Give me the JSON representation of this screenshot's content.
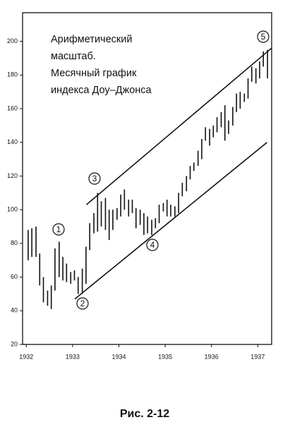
{
  "chart_data": {
    "type": "hilo",
    "annotation": [
      "Арифметический",
      "масштаб.",
      "Месячный график",
      "индекса Доу–Джонса"
    ],
    "caption": "Рис. 2-12",
    "color": "#111111",
    "xlim": [
      1931.92,
      1937.3
    ],
    "xticks": [
      1932,
      1933,
      1934,
      1935,
      1936,
      1937
    ],
    "ylim": [
      20,
      217
    ],
    "yticks": [
      20,
      40,
      60,
      80,
      100,
      120,
      140,
      160,
      180,
      200
    ],
    "x": [
      1932.04,
      1932.12,
      1932.21,
      1932.29,
      1932.37,
      1932.46,
      1932.54,
      1932.62,
      1932.71,
      1932.79,
      1932.87,
      1932.96,
      1933.04,
      1933.12,
      1933.21,
      1933.29,
      1933.37,
      1933.46,
      1933.54,
      1933.62,
      1933.71,
      1933.79,
      1933.87,
      1933.96,
      1934.04,
      1934.12,
      1934.21,
      1934.29,
      1934.37,
      1934.46,
      1934.54,
      1934.62,
      1934.71,
      1934.79,
      1934.87,
      1934.96,
      1935.04,
      1935.12,
      1935.21,
      1935.29,
      1935.37,
      1935.46,
      1935.54,
      1935.62,
      1935.71,
      1935.79,
      1935.87,
      1935.96,
      1936.04,
      1936.12,
      1936.21,
      1936.29,
      1936.37,
      1936.46,
      1936.54,
      1936.62,
      1936.71,
      1936.79,
      1936.87,
      1936.96,
      1937.04,
      1937.12,
      1937.21
    ],
    "high": [
      88,
      89,
      90,
      74,
      60,
      52,
      55,
      77,
      81,
      72,
      68,
      63,
      64,
      60,
      65,
      78,
      92,
      98,
      110,
      105,
      107,
      100,
      100,
      101,
      109,
      112,
      106,
      106,
      101,
      100,
      98,
      96,
      94,
      95,
      103,
      104,
      106,
      103,
      102,
      110,
      116,
      120,
      126,
      128,
      135,
      142,
      149,
      148,
      150,
      155,
      158,
      162,
      153,
      161,
      169,
      170,
      169,
      178,
      185,
      184,
      188,
      194,
      195
    ],
    "low": [
      70,
      72,
      72,
      55,
      45,
      43,
      41,
      52,
      60,
      58,
      57,
      56,
      58,
      50,
      50,
      56,
      76,
      86,
      87,
      90,
      88,
      82,
      88,
      94,
      96,
      100,
      96,
      98,
      89,
      91,
      85,
      86,
      85,
      89,
      92,
      99,
      96,
      96,
      96,
      98,
      108,
      111,
      118,
      123,
      126,
      130,
      141,
      138,
      143,
      146,
      149,
      141,
      145,
      150,
      158,
      160,
      164,
      166,
      176,
      175,
      178,
      185,
      178
    ],
    "trendlines": [
      {
        "x": [
          1933.3,
          1937.3
        ],
        "y": [
          103,
          196
        ]
      },
      {
        "x": [
          1933.05,
          1937.2
        ],
        "y": [
          47,
          140
        ]
      }
    ],
    "markers": [
      "1",
      "2",
      "3",
      "4",
      "5"
    ]
  }
}
